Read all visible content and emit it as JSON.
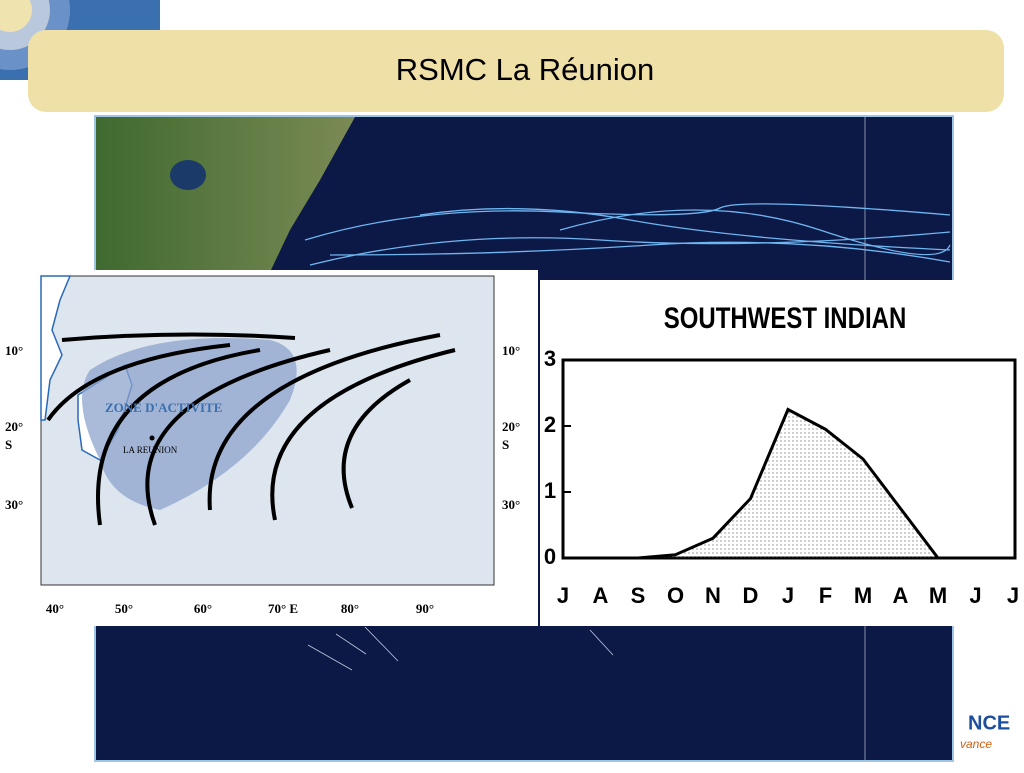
{
  "slide": {
    "title": "RSMC La Réunion"
  },
  "map": {
    "zone_label": "ZONE D'ACTIVITE",
    "place_label": "LA REUNION",
    "lat_left": [
      "10°",
      "20°",
      "S",
      "30°"
    ],
    "lat_right": [
      "10°",
      "20°",
      "S",
      "30°"
    ],
    "lon": [
      "40°",
      "50°",
      "60°",
      "70° E",
      "80°",
      "90°"
    ]
  },
  "logo": {
    "text": "NCE",
    "sub": "vance"
  },
  "chart_data": {
    "type": "area",
    "title": "SOUTHWEST INDIAN",
    "categories": [
      "J",
      "A",
      "S",
      "O",
      "N",
      "D",
      "J",
      "F",
      "M",
      "A",
      "M",
      "J",
      "J"
    ],
    "values": [
      0,
      0,
      0,
      0.05,
      0.3,
      0.9,
      2.25,
      1.95,
      1.5,
      0.75,
      0,
      0,
      0
    ],
    "color": "#000000",
    "ylim": [
      0,
      3
    ],
    "yticks": [
      0,
      1,
      2,
      3
    ],
    "grid": false
  }
}
